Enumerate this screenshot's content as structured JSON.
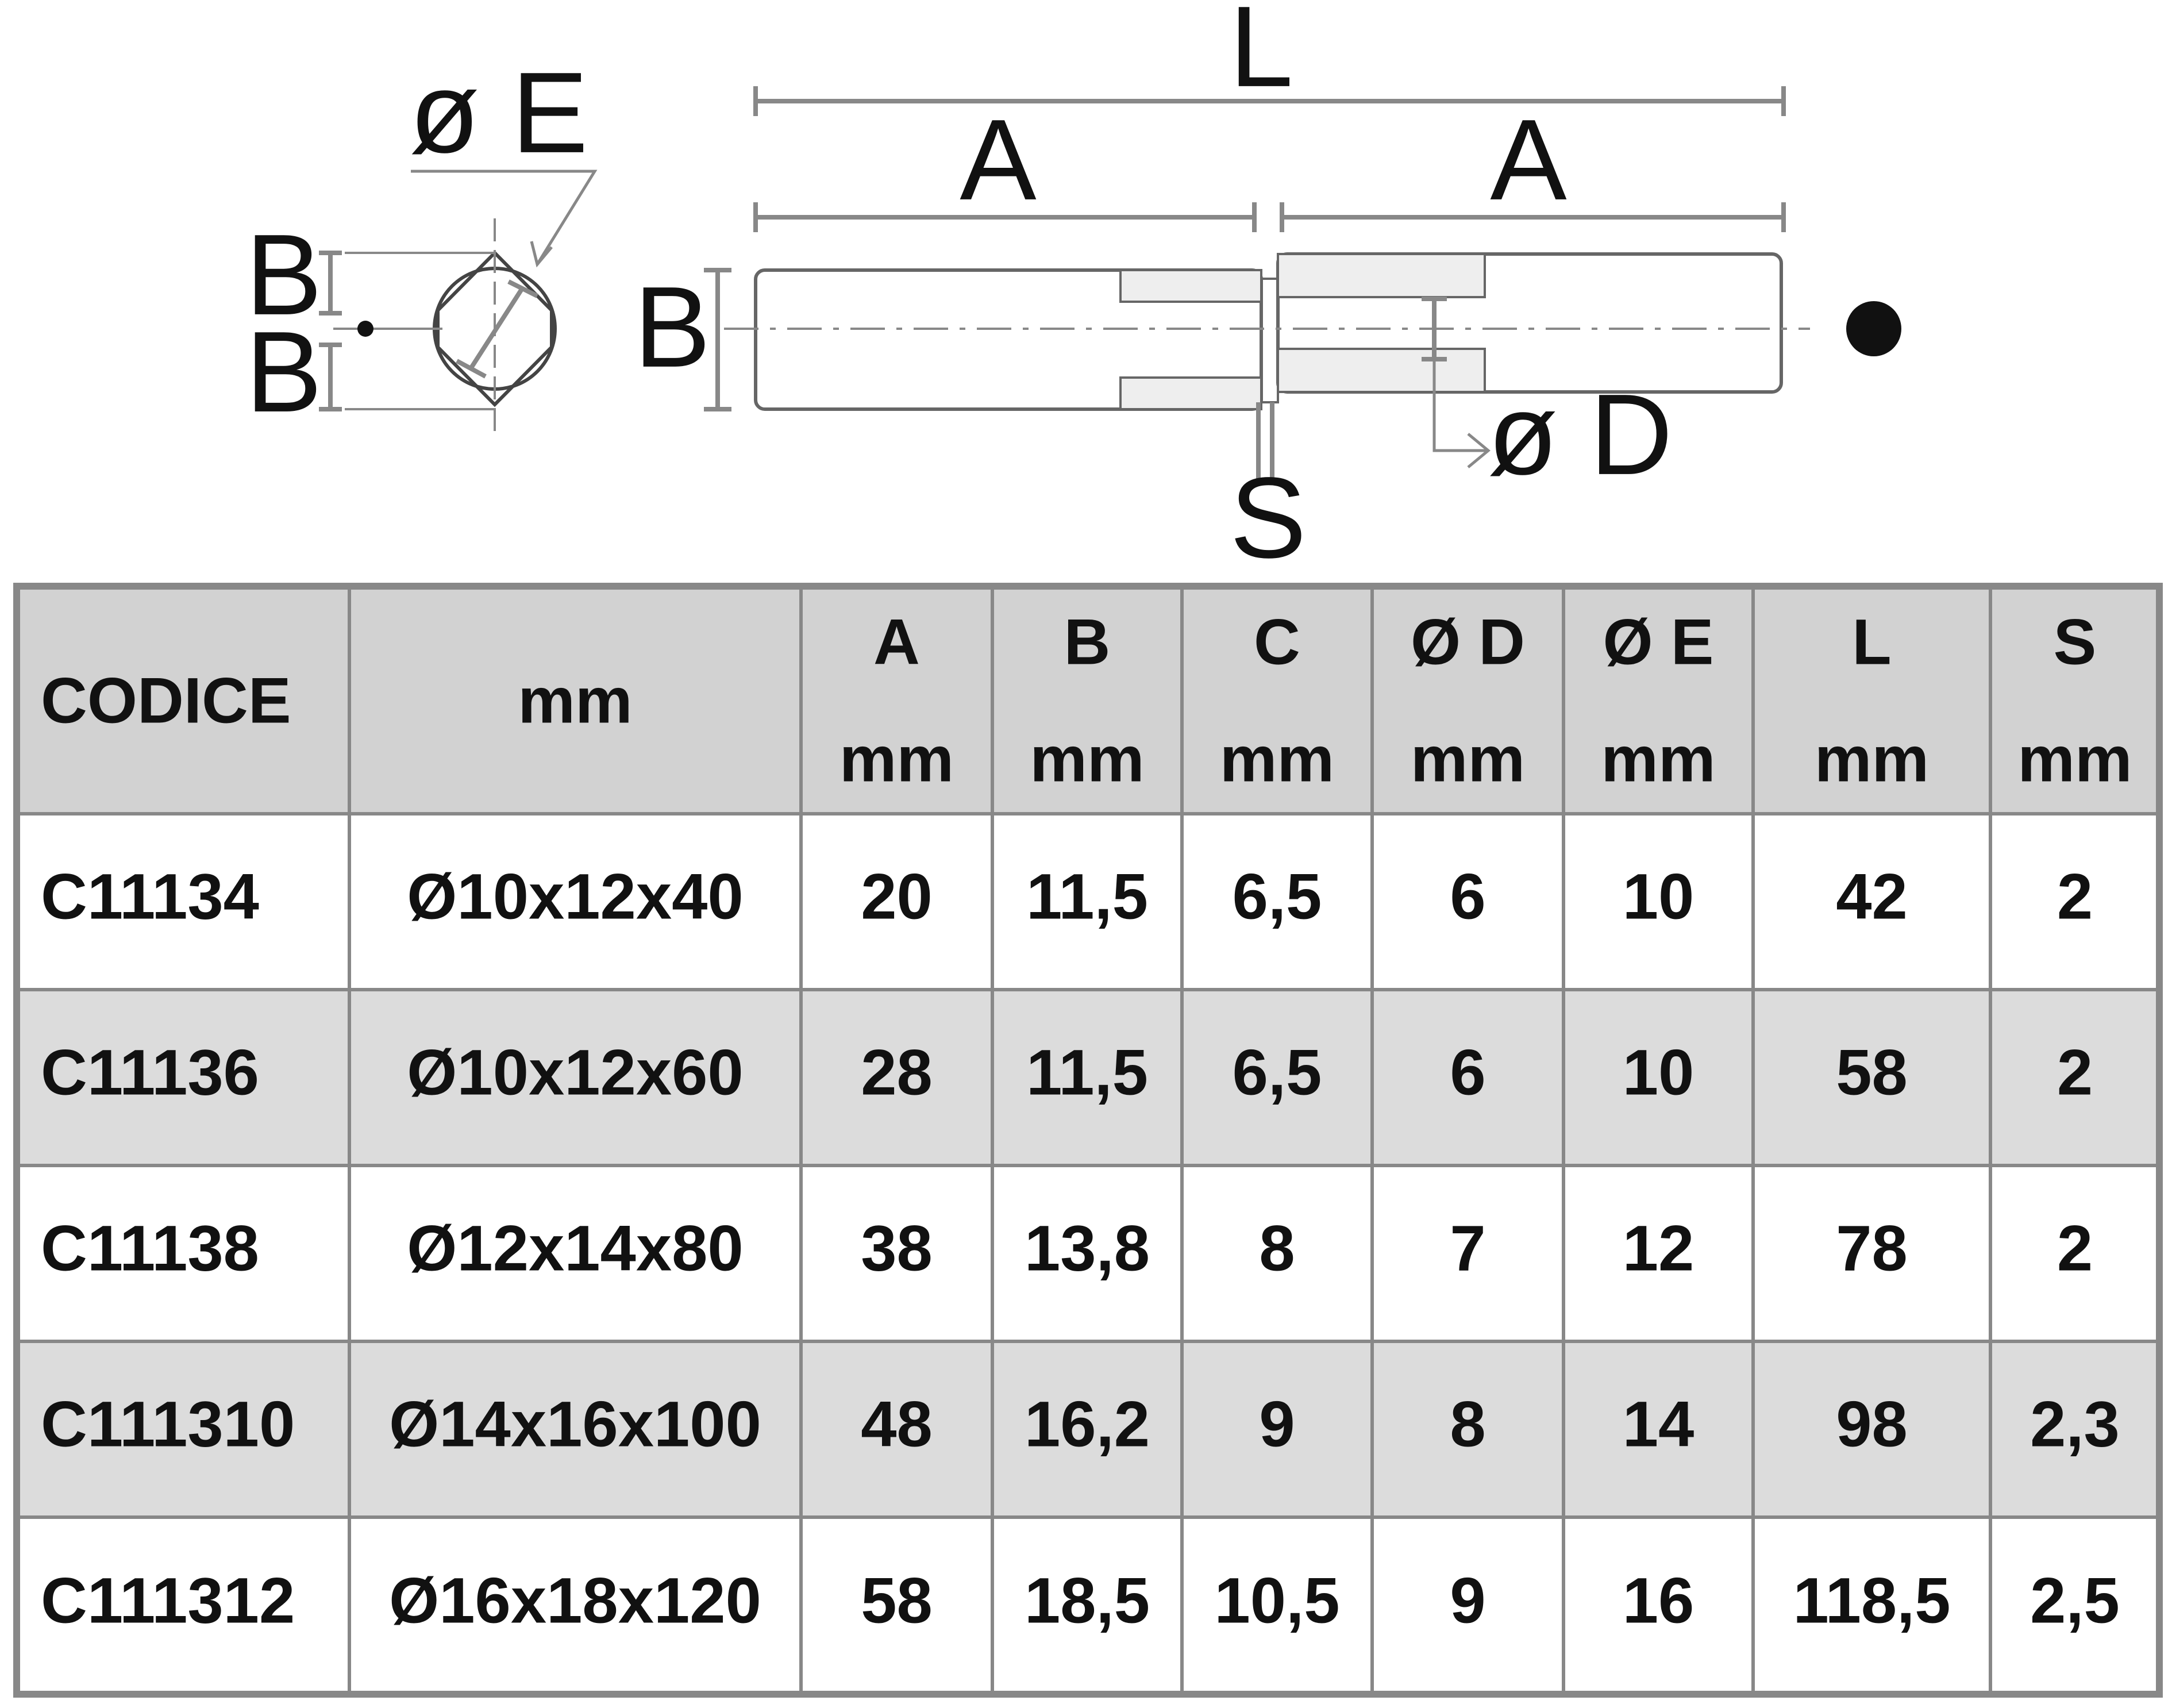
{
  "diagram": {
    "labels": {
      "phi_e": "ø E",
      "b_top": "B",
      "b_bottom": "B",
      "b_side": "B",
      "l": "L",
      "a_left": "A",
      "a_right": "A",
      "phi_d": "ø D",
      "s": "S"
    }
  },
  "table": {
    "header": [
      {
        "name": "CODICE"
      },
      {
        "name": "mm"
      },
      {
        "name": "A",
        "unit": "mm"
      },
      {
        "name": "B",
        "unit": "mm"
      },
      {
        "name": "C",
        "unit": "mm"
      },
      {
        "name": "Ø D",
        "unit": "mm"
      },
      {
        "name": "Ø E",
        "unit": "mm"
      },
      {
        "name": "L",
        "unit": "mm"
      },
      {
        "name": "S",
        "unit": "mm"
      }
    ],
    "rows": [
      [
        "C11134",
        "Ø10x12x40",
        "20",
        "11,5",
        "6,5",
        "6",
        "10",
        "42",
        "2"
      ],
      [
        "C11136",
        "Ø10x12x60",
        "28",
        "11,5",
        "6,5",
        "6",
        "10",
        "58",
        "2"
      ],
      [
        "C11138",
        "Ø12x14x80",
        "38",
        "13,8",
        "8",
        "7",
        "12",
        "78",
        "2"
      ],
      [
        "C111310",
        "Ø14x16x100",
        "48",
        "16,2",
        "9",
        "8",
        "14",
        "98",
        "2,3"
      ],
      [
        "C111312",
        "Ø16x18x120",
        "58",
        "18,5",
        "10,5",
        "9",
        "16",
        "118,5",
        "2,5"
      ]
    ]
  }
}
